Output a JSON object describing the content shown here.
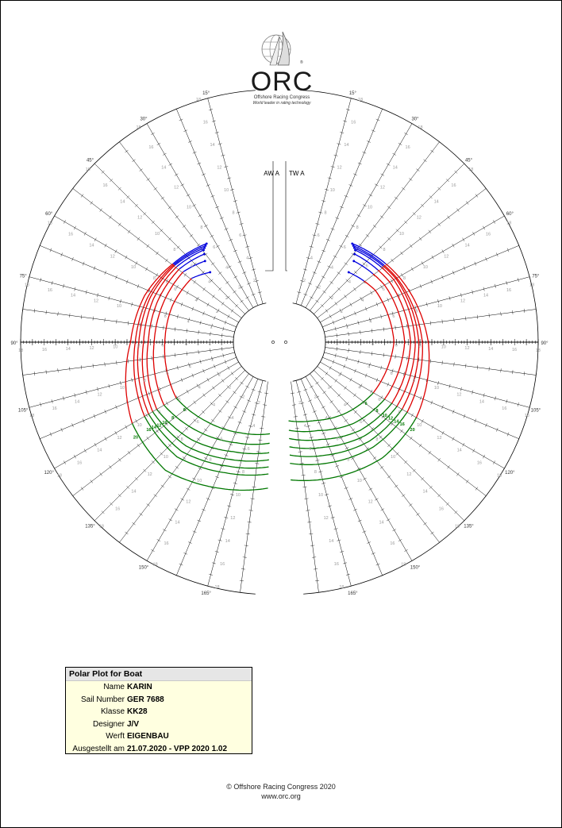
{
  "header": {
    "logo_text": "ORC",
    "logo_tagline": "Offshore Racing Congress",
    "logo_subtagline": "World leader in rating technology"
  },
  "chart_data": {
    "type": "polar",
    "title": "",
    "left_plot_label": "AW A",
    "right_plot_label": "TW A",
    "angle_range_deg": [
      0,
      180
    ],
    "upper_angle_labels": [
      "15°",
      "30°",
      "45°",
      "60°",
      "75°",
      "90°"
    ],
    "lower_angle_labels": [
      "105°",
      "120°",
      "135°",
      "150°",
      "165°"
    ],
    "speed_tick_labels": [
      "1",
      "2",
      "3",
      "4",
      "5",
      "6",
      "7",
      "8",
      "9",
      "10",
      "11",
      "12",
      "13",
      "14",
      "15",
      "16",
      "17",
      "18"
    ],
    "wind_speeds": [
      6,
      8,
      10,
      12,
      14,
      16,
      20
    ],
    "left_plot": {
      "description_axis": "apparent wind angle",
      "series": [
        {
          "name": "6",
          "upwind_label_pos": [
            200,
            0
          ],
          "points": [
            [
              42,
              4.6
            ],
            [
              52,
              5.4
            ],
            [
              70,
              5.7
            ],
            [
              90,
              5.8
            ],
            [
              120,
              6.1
            ],
            [
              140,
              5.4
            ],
            [
              160,
              4.8
            ],
            [
              178,
              4.4
            ]
          ]
        },
        {
          "name": "8",
          "points": [
            [
              40,
              5.6
            ],
            [
              52,
              6.3
            ],
            [
              70,
              6.5
            ],
            [
              90,
              6.7
            ],
            [
              120,
              7.3
            ],
            [
              140,
              6.5
            ],
            [
              160,
              5.7
            ],
            [
              178,
              5.2
            ]
          ]
        },
        {
          "name": "10",
          "points": [
            [
              38,
              6.1
            ],
            [
              52,
              6.7
            ],
            [
              70,
              7.0
            ],
            [
              90,
              7.2
            ],
            [
              120,
              8.0
            ],
            [
              140,
              7.4
            ],
            [
              160,
              6.5
            ],
            [
              178,
              6.0
            ]
          ]
        },
        {
          "name": "12",
          "points": [
            [
              37,
              6.4
            ],
            [
              52,
              7.0
            ],
            [
              70,
              7.4
            ],
            [
              90,
              7.6
            ],
            [
              120,
              8.4
            ],
            [
              140,
              8.1
            ],
            [
              160,
              7.2
            ],
            [
              178,
              6.6
            ]
          ]
        },
        {
          "name": "14",
          "points": [
            [
              36,
              6.5
            ],
            [
              52,
              7.2
            ],
            [
              70,
              7.7
            ],
            [
              90,
              8.0
            ],
            [
              120,
              8.8
            ],
            [
              140,
              8.7
            ],
            [
              160,
              7.8
            ],
            [
              178,
              7.2
            ]
          ]
        },
        {
          "name": "16",
          "points": [
            [
              35,
              6.6
            ],
            [
              52,
              7.3
            ],
            [
              70,
              7.9
            ],
            [
              90,
              8.3
            ],
            [
              120,
              9.2
            ],
            [
              140,
              9.3
            ],
            [
              160,
              8.4
            ],
            [
              178,
              7.8
            ]
          ]
        },
        {
          "name": "20",
          "points": [
            [
              34,
              6.7
            ],
            [
              52,
              7.4
            ],
            [
              70,
              8.2
            ],
            [
              90,
              8.7
            ],
            [
              120,
              10.4
            ],
            [
              140,
              10.8
            ],
            [
              160,
              9.8
            ],
            [
              178,
              9.0
            ]
          ]
        }
      ]
    },
    "right_plot": {
      "description_axis": "true wind angle",
      "series": [
        {
          "name": "6",
          "points": [
            [
              42,
              4.6
            ],
            [
              60,
              5.4
            ],
            [
              90,
              5.8
            ],
            [
              120,
              5.2
            ],
            [
              140,
              4.5
            ],
            [
              160,
              3.7
            ],
            [
              178,
              3.3
            ]
          ]
        },
        {
          "name": "8",
          "points": [
            [
              40,
              5.6
            ],
            [
              60,
              6.3
            ],
            [
              90,
              6.7
            ],
            [
              120,
              6.3
            ],
            [
              140,
              5.6
            ],
            [
              160,
              4.6
            ],
            [
              178,
              4.1
            ]
          ]
        },
        {
          "name": "10",
          "points": [
            [
              38,
              6.1
            ],
            [
              60,
              6.8
            ],
            [
              90,
              7.2
            ],
            [
              120,
              7.0
            ],
            [
              140,
              6.4
            ],
            [
              160,
              5.4
            ],
            [
              178,
              4.8
            ]
          ]
        },
        {
          "name": "12",
          "points": [
            [
              37,
              6.4
            ],
            [
              60,
              7.2
            ],
            [
              90,
              7.6
            ],
            [
              120,
              7.5
            ],
            [
              140,
              7.0
            ],
            [
              160,
              6.1
            ],
            [
              178,
              5.5
            ]
          ]
        },
        {
          "name": "14",
          "points": [
            [
              36,
              6.5
            ],
            [
              60,
              7.4
            ],
            [
              90,
              7.9
            ],
            [
              120,
              8.0
            ],
            [
              140,
              7.6
            ],
            [
              160,
              6.8
            ],
            [
              178,
              6.2
            ]
          ]
        },
        {
          "name": "16",
          "points": [
            [
              35,
              6.6
            ],
            [
              60,
              7.5
            ],
            [
              90,
              8.2
            ],
            [
              120,
              8.5
            ],
            [
              140,
              8.2
            ],
            [
              160,
              7.5
            ],
            [
              178,
              6.9
            ]
          ]
        },
        {
          "name": "20",
          "points": [
            [
              34,
              6.7
            ],
            [
              60,
              7.7
            ],
            [
              90,
              8.7
            ],
            [
              120,
              9.4
            ],
            [
              140,
              9.4
            ],
            [
              160,
              8.8
            ],
            [
              178,
              8.3
            ]
          ]
        }
      ]
    },
    "max_speed": 18,
    "colors": {
      "upwind": "#0000dd",
      "reaching": "#dd0000",
      "downwind": "#007700",
      "grid": "#000000",
      "tick_label": "#999999"
    }
  },
  "info": {
    "title": "Polar Plot for Boat",
    "rows": [
      {
        "label": "Name",
        "value": "KARIN"
      },
      {
        "label": "Sail Number",
        "value": "GER 7688"
      },
      {
        "label": "Klasse",
        "value": "KK28"
      },
      {
        "label": "Designer",
        "value": "J/V"
      },
      {
        "label": "Werft",
        "value": "EIGENBAU"
      },
      {
        "label": "Ausgestellt am",
        "value": "21.07.2020 - VPP 2020 1.02"
      }
    ]
  },
  "footer": {
    "copyright": "© Offshore Racing Congress 2020",
    "url": "www.orc.org"
  }
}
